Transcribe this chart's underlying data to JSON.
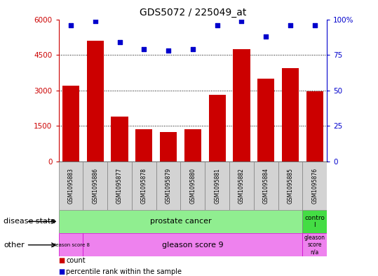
{
  "title": "GDS5072 / 225049_at",
  "samples": [
    "GSM1095883",
    "GSM1095886",
    "GSM1095877",
    "GSM1095878",
    "GSM1095879",
    "GSM1095880",
    "GSM1095881",
    "GSM1095882",
    "GSM1095884",
    "GSM1095885",
    "GSM1095876"
  ],
  "counts": [
    3200,
    5100,
    1900,
    1350,
    1250,
    1350,
    2800,
    4750,
    3500,
    3950,
    2950
  ],
  "percentile_ranks": [
    96,
    99,
    84,
    79,
    78,
    79,
    96,
    99,
    88,
    96,
    96
  ],
  "bar_color": "#cc0000",
  "dot_color": "#0000cc",
  "ylim_left": [
    0,
    6000
  ],
  "ylim_right": [
    0,
    100
  ],
  "yticks_left": [
    0,
    1500,
    3000,
    4500,
    6000
  ],
  "yticks_right": [
    0,
    25,
    50,
    75,
    100
  ],
  "disease_state_color": "#90ee90",
  "control_color": "#44dd44",
  "other_color": "#ee82ee",
  "tick_bg_color": "#d3d3d3",
  "legend_count_color": "#cc0000",
  "legend_pct_color": "#0000cc"
}
